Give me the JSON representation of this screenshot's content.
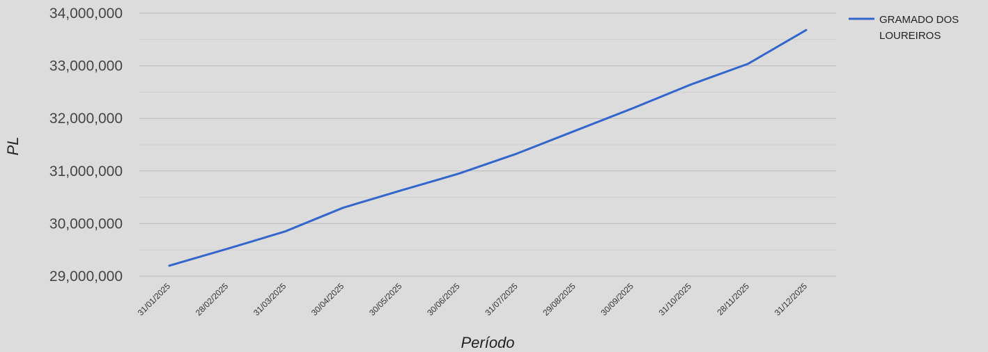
{
  "chart_data": {
    "type": "line",
    "title": "",
    "xlabel": "Período",
    "ylabel": "PL",
    "categories": [
      "31/01/2025",
      "28/02/2025",
      "31/03/2025",
      "30/04/2025",
      "30/05/2025",
      "30/06/2025",
      "31/07/2025",
      "29/08/2025",
      "30/09/2025",
      "31/10/2025",
      "28/11/2025",
      "31/12/2025"
    ],
    "series": [
      {
        "name": "GRAMADO DOS LOUREIROS",
        "color": "#3366cc",
        "values": [
          29200000,
          29520000,
          29850000,
          30300000,
          30630000,
          30950000,
          31330000,
          31760000,
          32190000,
          32640000,
          33040000,
          33680000
        ]
      }
    ],
    "ylim": [
      29000000,
      34000000
    ],
    "yticks": [
      "29,000,000",
      "30,000,000",
      "31,000,000",
      "32,000,000",
      "33,000,000",
      "34,000,000"
    ],
    "legend": {
      "position": "right",
      "lines": [
        "GRAMADO DOS",
        "LOUREIROS"
      ]
    },
    "grid": true
  }
}
